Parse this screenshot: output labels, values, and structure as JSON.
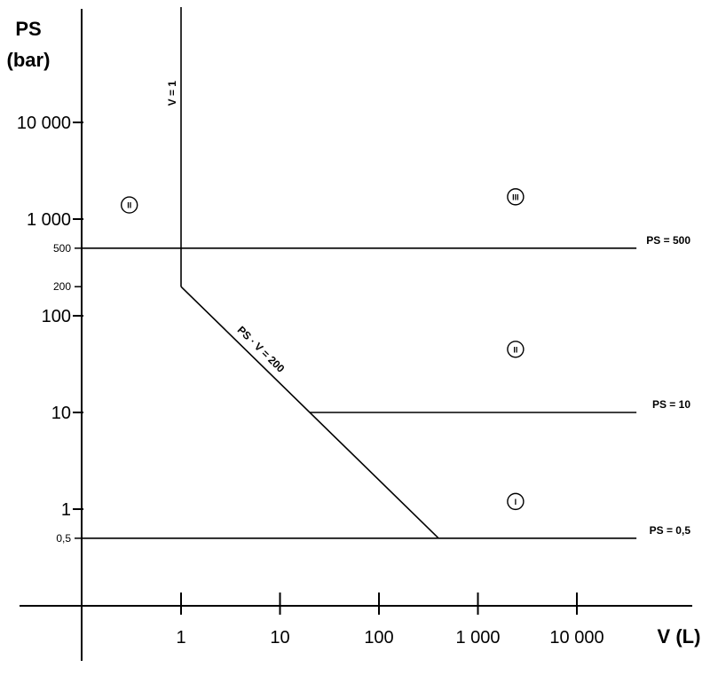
{
  "chart_data": {
    "type": "line",
    "xlabel": "V (L)",
    "ylabel_line1": "PS",
    "ylabel_line2": "(bar)",
    "x_scale": "log",
    "y_scale": "log",
    "x_ticks": [
      {
        "value": 1,
        "label": "1"
      },
      {
        "value": 10,
        "label": "10"
      },
      {
        "value": 100,
        "label": "100"
      },
      {
        "value": 1000,
        "label": "1 000"
      },
      {
        "value": 10000,
        "label": "10 000"
      }
    ],
    "y_ticks_major": [
      {
        "value": 10000,
        "label": "10 000"
      },
      {
        "value": 1000,
        "label": "1 000"
      },
      {
        "value": 100,
        "label": "100"
      },
      {
        "value": 10,
        "label": "10"
      },
      {
        "value": 1,
        "label": "1"
      }
    ],
    "y_ticks_minor": [
      {
        "value": 500,
        "label": "500"
      },
      {
        "value": 200,
        "label": "200"
      },
      {
        "value": 0.5,
        "label": "0,5"
      }
    ],
    "boundary_lines": [
      {
        "name": "PS = 500",
        "label": "PS = 500",
        "points": [
          [
            0.1,
            500
          ],
          [
            40000,
            500
          ]
        ]
      },
      {
        "name": "PS = 10",
        "label": "PS = 10",
        "points": [
          [
            20,
            10
          ],
          [
            40000,
            10
          ]
        ]
      },
      {
        "name": "PS = 0,5",
        "label": "PS = 0,5",
        "points": [
          [
            0.1,
            0.5
          ],
          [
            40000,
            0.5
          ]
        ]
      },
      {
        "name": "V = 1",
        "label": "V = 1",
        "points": [
          [
            1,
            200
          ],
          [
            1,
            200000
          ]
        ]
      },
      {
        "name": "PS · V = 200",
        "label": "PS · V = 200",
        "points": [
          [
            1,
            200
          ],
          [
            400,
            0.5
          ]
        ]
      }
    ],
    "regions": [
      {
        "label": "II",
        "position": [
          0.3,
          1400
        ]
      },
      {
        "label": "III",
        "position": [
          2400,
          1700
        ]
      },
      {
        "label": "II",
        "position": [
          2400,
          45
        ]
      },
      {
        "label": "I",
        "position": [
          2400,
          1.2
        ]
      }
    ]
  }
}
